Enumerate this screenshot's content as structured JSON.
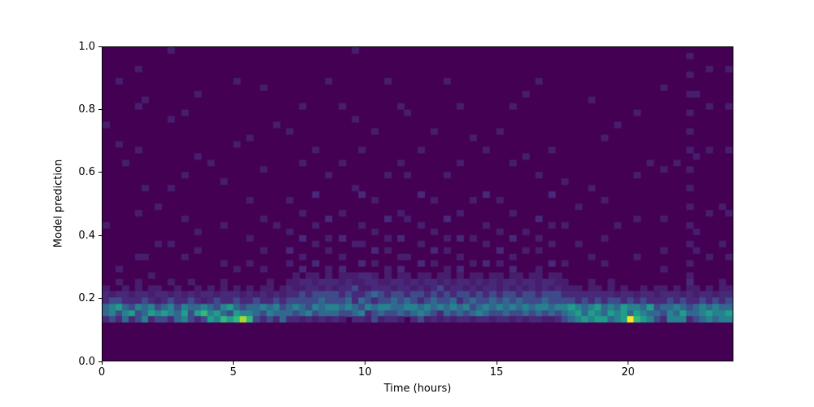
{
  "figure": {
    "background": "#ffffff"
  },
  "chart_data": {
    "type": "heatmap",
    "title": "",
    "xlabel": "Time (hours)",
    "ylabel": "Model prediction",
    "xlim": [
      0,
      24
    ],
    "ylim": [
      0.0,
      1.0
    ],
    "x_tick_values": [
      0,
      5,
      10,
      15,
      20
    ],
    "x_tick_labels": [
      "0",
      "5",
      "10",
      "15",
      "20"
    ],
    "y_tick_values": [
      0.0,
      0.2,
      0.4,
      0.6,
      0.8,
      1.0
    ],
    "y_tick_labels": [
      "0.0",
      "0.2",
      "0.4",
      "0.6",
      "0.8",
      "1.0"
    ],
    "grid": {
      "cols": 96,
      "rows": 50,
      "row_order": "top-to-bottom"
    },
    "colormap": "viridis",
    "background_color": "#440154",
    "palette": [
      "#440154",
      "#471d6d",
      "#482878",
      "#3e4a89",
      "#31688e",
      "#26828e",
      "#1f9e89",
      "#35b779",
      "#a5db36",
      "#fde725"
    ],
    "legend": "none",
    "description": "Density of model predictions binned over time of day; dense band near prediction 0.13-0.2 at night hours, diffuse band up to ~0.3 midday, sparse noise above, bright hotspots near hours 5.4 and 20.2, faint vertical streak near hour 22.3",
    "columns": [
      "00000000000010000000000000001000000000122442000000",
      "00000000000000000000000000000000000000013553000000",
      "00000100000000010000000000000000000101023632000000",
      "00000000000000000010000000000000000000122454000000",
      "00000000000000000000000000000000000000012362000000",
      "00010000010000001000000000100000010001122533000000",
      "00000000100000000000001000000000010000023445000000",
      "00000000000000000000000000000000000010112562000000",
      "00000000000000000000000001000001000000121353000000",
      "00000000000000000000000000000000000000022463000000",
      "10000000000100000000001000000001000001013552000000",
      "00000000000000000000000000000000000000122344000000",
      "00000000001000000000100000010000010000012565000000",
      "00000000000000000000000000000000000001023433000000",
      "00000001000000000100000000000100100000112462000000",
      "00000000000000000000000000000000000000021573000000",
      "00000000000000000010000000000000000000122456000000",
      "00000000000000000000000000000000000000013365000000",
      "00000000000000000000010000001000001001122547000000",
      "00000000000000000000000000000000000000022636000000",
      "00000100000000010000000000000000000100123467000000",
      "00000000000000000000000000000000000000012358000000",
      "00000000000000100000000010000010001000122457000000",
      "00000000000000000000000000000000000000013443000000",
      "00000010000000000001000000010000100100122532000000",
      "00000000000000000000000000000000000001112453000000",
      "00000000000010000000000000001000000000023542000000",
      "00000000000000000000000000000000000000112344000000",
      "00000000000001000000000010000100201001223442000000",
      "00000000000000000000000000000000000011123532000000",
      "00000000010000000010000000100020010202133441000000",
      "00000000000000000000000000000000000012223352000000",
      "00000000000000001000000200001001002011233531000000",
      "00000000000000000000000000000000000002134442000000",
      "00000100000000000000100000020010100112233541000000",
      "00000000000000000000000000000000000002133542000000",
      "00000000010000000010000000100020010211223431000000",
      "00000000000000000000000000000000000012234530000000",
      "10000000000100000000001000000001000011322442000000",
      "00000000000000001000000200001001002021124352000000",
      "00000000000000000000000000000000000022133521000000",
      "00000000000001000000000010000100201012242433000000",
      "00000000000000000000000000000000000001233541000000",
      "00000100000000000000100000020010100111223532000000",
      "00000000000000000000000000000000000002134432000000",
      "00000000010000000010000000100020010212233441000000",
      "00000000001000000000100000010000010011224530000000",
      "00000000000000000000000000000000000002133542000000",
      "00000000000000001000000200001001002011232453000000",
      "00000000000000000000000000000000000012123541000000",
      "00000000000001000000000010000100201002234432000000",
      "00000000000000000000000000000000000011323521000000",
      "00000100000000000000100000020010100112133442000000",
      "00000000000000000000000000000000000001224531000000",
      "00000000010000000010000000100020010212232442000000",
      "00000000000000000000000000000000000002133532000000",
      "00000000000000100000000010000010001011224341000000",
      "00000000000000000000000000000000000012133452000000",
      "00000000000000001000000200001001002001223542000000",
      "00000000000000000000000000000000000012234431000000",
      "00000000000001000000000010000100201011123532000000",
      "00000000000000000000000000000000000002234442000000",
      "00000000010000000010000000100020010212133531000000",
      "00000000000000000000000000000000000011224432000000",
      "00000001000000000100000000000100100002133541000000",
      "00000000000000000000000000000000000012233432000000",
      "00000100000000000000100000020010100111123542000000",
      "00000000000000000000000000000000000002234531000000",
      "00000000000000001000000200001001002012133441000000",
      "00000000000000000000000000000000000011233532000000",
      "00000000000000000000010000001000001001123543000000",
      "00000000000000000000000000000000000000123654000000",
      "00000000000000000000000001000001000000122565000000",
      "00000000000000000000000000000000000000023446000000",
      "00000000100000000000001000000000010001122565000000",
      "00000000000000000000000000000000000000123656000000",
      "00000000000000100000000010000010001000022446000000",
      "00000000000000000000000000000000000001123564000000",
      "00000000000010000000000000001000000000013455000000",
      "00000000000000000000000000000000000000122666000000",
      "00000000000000000000000000000000000000023549000000",
      "00000000001000000000100000010000010000012567000000",
      "00000000000000000000000000000000000000123456000000",
      "00000000000000000010000000000000000000022645000000",
      "00000000000000000000000000000000000000112343000000",
      "00000010000000000001000000010000100100122432000000",
      "00000000000000000000000000000000000000023455000000",
      "00000000000000000010000000000000000000122545000000",
      "00000000000000000000000000000000000000013465000000",
      "01001001001001001001001001001001001012122342000000",
      "00000001000000000100000000000100100000112443000000",
      "00000000000000000000000000000000000000023554000000",
      "00010000010000001000000000100000010000122465000000",
      "00000000000000000000000000000000000000013554000000",
      "00000000000000000000000001000001000001122455000000",
      "00010000010000001000000000100000010000123465000000"
    ]
  }
}
